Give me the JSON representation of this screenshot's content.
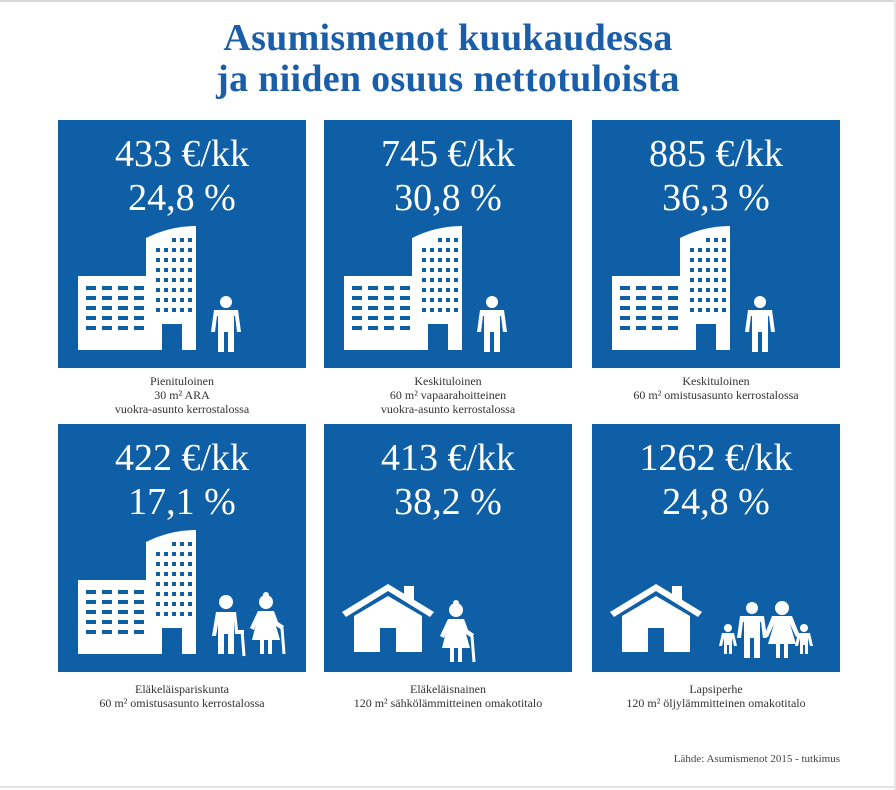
{
  "title": {
    "line1": "Asumismenot kuukaudessa",
    "line2": "ja niiden osuus nettotuloista"
  },
  "cards": [
    {
      "amount": "433 €/kk",
      "percent": "24,8 %",
      "icons": [
        "apartment-building-icon",
        "adult-person-icon"
      ],
      "caption": [
        "Pienituloinen",
        "30 m² ARA",
        "vuokra-asunto kerrostalossa"
      ]
    },
    {
      "amount": "745 €/kk",
      "percent": "30,8 %",
      "icons": [
        "apartment-building-icon",
        "adult-person-icon"
      ],
      "caption": [
        "Keskituloinen",
        "60 m² vapaarahoitteinen",
        "vuokra-asunto kerrostalossa"
      ]
    },
    {
      "amount": "885 €/kk",
      "percent": "36,3 %",
      "icons": [
        "apartment-building-icon",
        "adult-person-icon"
      ],
      "caption": [
        "Keskituloinen",
        "60 m² omistusasunto kerrostalossa"
      ]
    },
    {
      "amount": "422 €/kk",
      "percent": "17,1 %",
      "icons": [
        "apartment-building-icon",
        "elderly-couple-icon"
      ],
      "caption": [
        "Eläkeläispariskunta",
        "60 m² omistusasunto kerrostalossa"
      ]
    },
    {
      "amount": "413 €/kk",
      "percent": "38,2 %",
      "icons": [
        "house-icon",
        "elderly-woman-icon"
      ],
      "caption": [
        "Eläkeläisnainen",
        "120 m² sähkölämmitteinen omakotitalo"
      ]
    },
    {
      "amount": "1262 €/kk",
      "percent": "24,8 %",
      "icons": [
        "house-icon",
        "family-icon"
      ],
      "caption": [
        "Lapsiperhe",
        "120 m² öljylämmitteinen omakotitalo"
      ]
    }
  ],
  "source": "Lähde: Asumismenot 2015 - tutkimus",
  "colors": {
    "title": "#1a5da8",
    "card": "#0f5fa7",
    "icon": "#ffffff",
    "caption": "#333333"
  }
}
